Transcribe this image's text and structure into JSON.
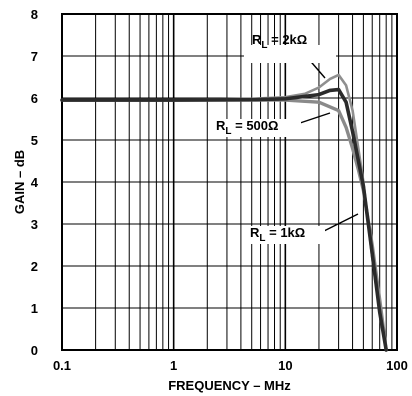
{
  "chart_data": {
    "type": "line",
    "xlabel": "FREQUENCY – MHz",
    "ylabel": "GAIN – dB",
    "x_scale": "log",
    "xlim": [
      0.1,
      100
    ],
    "ylim": [
      0,
      8
    ],
    "x_ticks": [
      "0.1",
      "1",
      "10",
      "100"
    ],
    "y_ticks": [
      "0",
      "1",
      "2",
      "3",
      "4",
      "5",
      "6",
      "7",
      "8"
    ],
    "grid": true,
    "series": [
      {
        "name": "R_L = 2kΩ",
        "color": "#8f8f8f",
        "x": [
          0.1,
          1,
          5,
          10,
          15,
          20,
          25,
          30,
          35,
          40,
          50,
          60,
          70,
          80
        ],
        "y": [
          5.95,
          5.95,
          5.98,
          6.02,
          6.1,
          6.25,
          6.45,
          6.55,
          6.3,
          5.7,
          4.0,
          2.2,
          0.9,
          0.0
        ]
      },
      {
        "name": "R_L = 500Ω",
        "color": "#8a8a8a",
        "x": [
          0.1,
          1,
          5,
          10,
          20,
          30,
          35,
          40,
          45,
          50,
          60,
          70,
          80
        ],
        "y": [
          5.95,
          5.95,
          5.95,
          5.95,
          5.9,
          5.7,
          5.3,
          4.8,
          4.3,
          3.8,
          2.5,
          1.2,
          0.0
        ]
      },
      {
        "name": "R_L = 1kΩ",
        "color": "#2b2b2b",
        "x": [
          0.1,
          1,
          5,
          10,
          20,
          25,
          30,
          35,
          40,
          50,
          60,
          70,
          80
        ],
        "y": [
          5.95,
          5.95,
          5.96,
          5.98,
          6.08,
          6.18,
          6.2,
          5.9,
          5.2,
          3.9,
          2.3,
          0.9,
          0.0
        ]
      }
    ],
    "annotations": [
      {
        "main": "R",
        "sub": "L",
        "rest": " = 2kΩ"
      },
      {
        "main": "R",
        "sub": "L",
        "rest": " = 500Ω"
      },
      {
        "main": "R",
        "sub": "L",
        "rest": " = 1kΩ"
      }
    ]
  }
}
